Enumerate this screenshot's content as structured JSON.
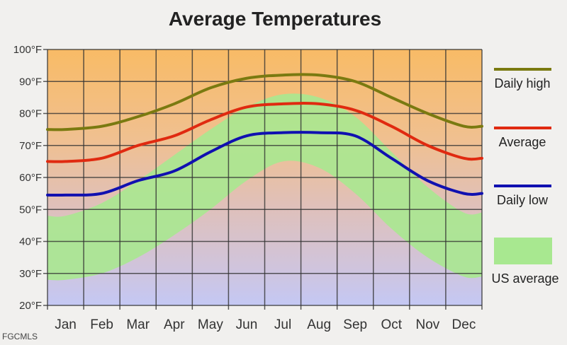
{
  "chart_data": {
    "type": "line",
    "title": "Average Temperatures",
    "categories": [
      "Jan",
      "Feb",
      "Mar",
      "Apr",
      "May",
      "Jun",
      "Jul",
      "Aug",
      "Sep",
      "Oct",
      "Nov",
      "Dec"
    ],
    "yticks": [
      "20°F",
      "30°F",
      "40°F",
      "50°F",
      "60°F",
      "70°F",
      "80°F",
      "90°F",
      "100°F"
    ],
    "ylim": [
      20,
      100
    ],
    "grid": true,
    "legend_position": "right",
    "series": [
      {
        "name": "Daily high",
        "color": "#7a7a10",
        "values": [
          75,
          76,
          79,
          83,
          88,
          91,
          92,
          92,
          90,
          85,
          80,
          76
        ]
      },
      {
        "name": "Average",
        "color": "#e02a10",
        "values": [
          65,
          66,
          70,
          73,
          78,
          82,
          83,
          83,
          81,
          76,
          70,
          66
        ]
      },
      {
        "name": "Daily low",
        "color": "#1010b0",
        "values": [
          54.5,
          55,
          59,
          62,
          68,
          73,
          74,
          74,
          73,
          66,
          59,
          55
        ]
      }
    ],
    "band": {
      "name": "US average",
      "color": "#a8e890",
      "upper": [
        48,
        52,
        59,
        67,
        75,
        82,
        86,
        85,
        79,
        68,
        57,
        49
      ],
      "lower": [
        28,
        30,
        35,
        42,
        50,
        59,
        65,
        63,
        55,
        44,
        35,
        29
      ]
    },
    "source": "FGCMLS"
  }
}
